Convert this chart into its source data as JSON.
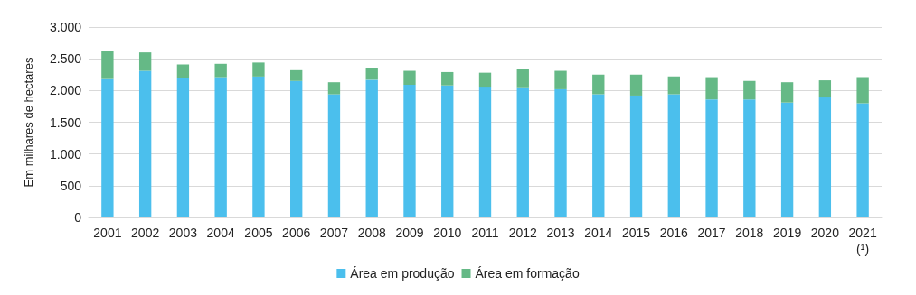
{
  "chart_data": {
    "type": "bar",
    "stacked": true,
    "ylabel": "Em milhares de hectares",
    "categories": [
      "2001",
      "2002",
      "2003",
      "2004",
      "2005",
      "2006",
      "2007",
      "2008",
      "2009",
      "2010",
      "2011",
      "2012",
      "2013",
      "2014",
      "2015",
      "2016",
      "2017",
      "2018",
      "2019",
      "2020",
      "2021\n(¹)"
    ],
    "series": [
      {
        "name": "Área em produção",
        "color": "#4bbfed",
        "values": [
          2180,
          2310,
          2200,
          2210,
          2220,
          2150,
          1940,
          2170,
          2090,
          2080,
          2060,
          2050,
          2020,
          1940,
          1920,
          1940,
          1860,
          1860,
          1810,
          1890,
          1800
        ]
      },
      {
        "name": "Área em formação",
        "color": "#65b986",
        "values": [
          440,
          290,
          210,
          210,
          220,
          170,
          190,
          190,
          220,
          210,
          220,
          280,
          290,
          310,
          330,
          280,
          350,
          290,
          320,
          270,
          410
        ]
      }
    ],
    "ylim": [
      0,
      3000
    ],
    "yticks": [
      0,
      500,
      {
        "value": 1000,
        "label": "1.000"
      },
      {
        "value": 1500,
        "label": "1.500"
      },
      {
        "value": 2000,
        "label": "2.000"
      },
      {
        "value": 2500,
        "label": "2.500"
      },
      {
        "value": 3000,
        "label": "3.000"
      }
    ],
    "grid": "y",
    "legend": "bottom"
  }
}
